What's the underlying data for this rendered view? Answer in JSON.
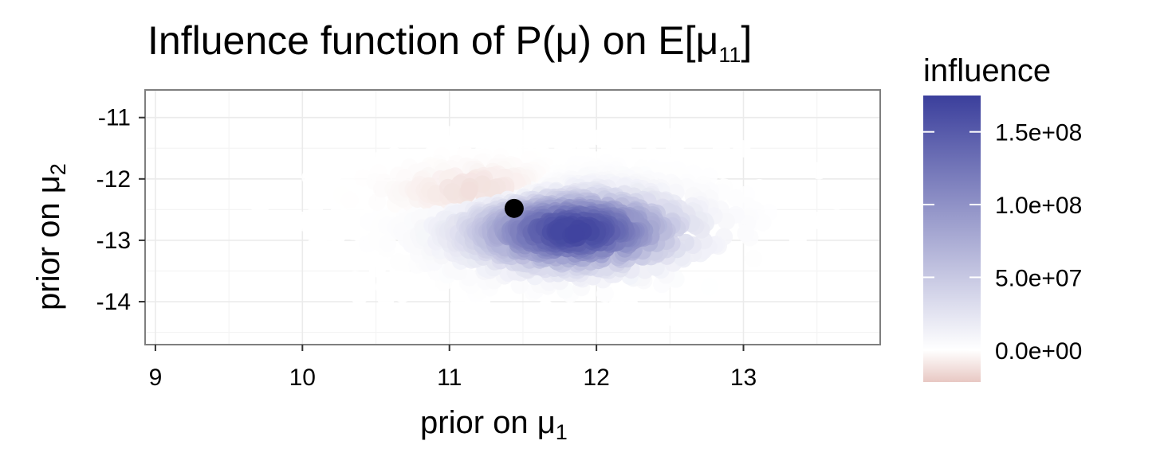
{
  "chart_data": {
    "type": "scatter",
    "title": {
      "text": "Influence function of P(",
      "mu": "μ",
      "mid": ") on E[",
      "mu2": "μ",
      "sub": "11",
      "end": "]"
    },
    "xlabel": {
      "text": "prior on ",
      "mu": "μ",
      "sub": "1"
    },
    "ylabel": {
      "text": "prior on ",
      "mu": "μ",
      "sub": "2"
    },
    "xlim": [
      8.93,
      13.93
    ],
    "ylim": [
      -14.7,
      -10.55
    ],
    "x_ticks": [
      9,
      10,
      11,
      12,
      13
    ],
    "x_tick_labels": [
      "9",
      "10",
      "11",
      "12",
      "13"
    ],
    "y_ticks": [
      -11,
      -12,
      -13,
      -14
    ],
    "y_tick_labels": [
      "-11",
      "-12",
      "-13",
      "-14"
    ],
    "grid": true,
    "legend_placement": "right",
    "legend": {
      "title": "influence",
      "min": -22000000.0,
      "max": 175000000.0,
      "breaks": [
        150000000.0,
        100000000.0,
        50000000.0,
        0.0
      ],
      "break_labels": [
        "1.5e+08",
        "1.0e+08",
        "5.0e+07",
        "0.0e+00"
      ],
      "colors": {
        "low": "#e8c8c3",
        "mid": "#ffffff",
        "high": "#3b3f9c"
      }
    },
    "highlight_point": {
      "x": 11.44,
      "y": -12.48,
      "color": "#000000"
    },
    "clusters": [
      {
        "name": "",
        "cx": 11.85,
        "cy": -12.85,
        "sx": 0.42,
        "sy": 0.34,
        "peak": 172000000.0
      },
      {
        "name": "",
        "cx": 11.3,
        "cy": -12.25,
        "sx": 0.34,
        "sy": 0.22,
        "peak": -22000000.0
      }
    ]
  }
}
